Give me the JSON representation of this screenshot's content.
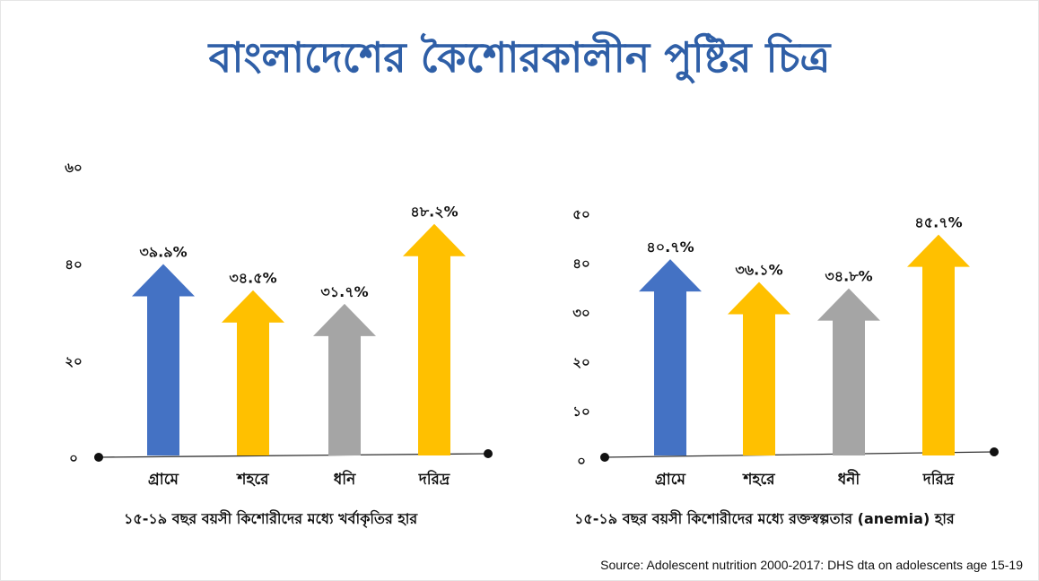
{
  "title": "বাংলাদেশের কৈশোরকালীন পুষ্টির চিত্র",
  "source": "Source: Adolescent nutrition 2000-2017: DHS dta on adolescents age 15-19",
  "chart_data": [
    {
      "type": "bar",
      "caption": "১৫-১৯ বছর বয়সী কিশোরীদের মধ্যে খর্বাকৃতির হার",
      "categories": [
        "গ্রামে",
        "শহরে",
        "ধনি",
        "দরিদ্র"
      ],
      "values": [
        39.9,
        34.5,
        31.7,
        48.2
      ],
      "value_labels": [
        "৩৯.৯%",
        "৩৪.৫%",
        "৩১.৭%",
        "৪৮.২%"
      ],
      "colors": [
        "#4472c4",
        "#ffc000",
        "#a5a5a5",
        "#ffc000"
      ],
      "y_ticks": [
        0,
        20,
        40,
        60
      ],
      "y_tick_labels": [
        "০",
        "২০",
        "৪০",
        "৬০"
      ],
      "ylim": [
        0,
        60
      ],
      "grid": false,
      "legend": false
    },
    {
      "type": "bar",
      "caption": "১৫-১৯ বছর বয়সী কিশোরীদের মধ্যে রক্তস্বল্পতার (anemia) হার",
      "categories": [
        "গ্রামে",
        "শহরে",
        "ধনী",
        "দরিদ্র"
      ],
      "values": [
        40.7,
        36.1,
        34.8,
        45.7
      ],
      "value_labels": [
        "৪০.৭%",
        "৩৬.১%",
        "৩৪.৮%",
        "৪৫.৭%"
      ],
      "colors": [
        "#4472c4",
        "#ffc000",
        "#a5a5a5",
        "#ffc000"
      ],
      "y_ticks": [
        0,
        10,
        20,
        30,
        40,
        50
      ],
      "y_tick_labels": [
        "০",
        "১০",
        "২০",
        "৩০",
        "৪০",
        "৫০"
      ],
      "ylim": [
        0,
        50
      ],
      "grid": false,
      "legend": false
    }
  ]
}
